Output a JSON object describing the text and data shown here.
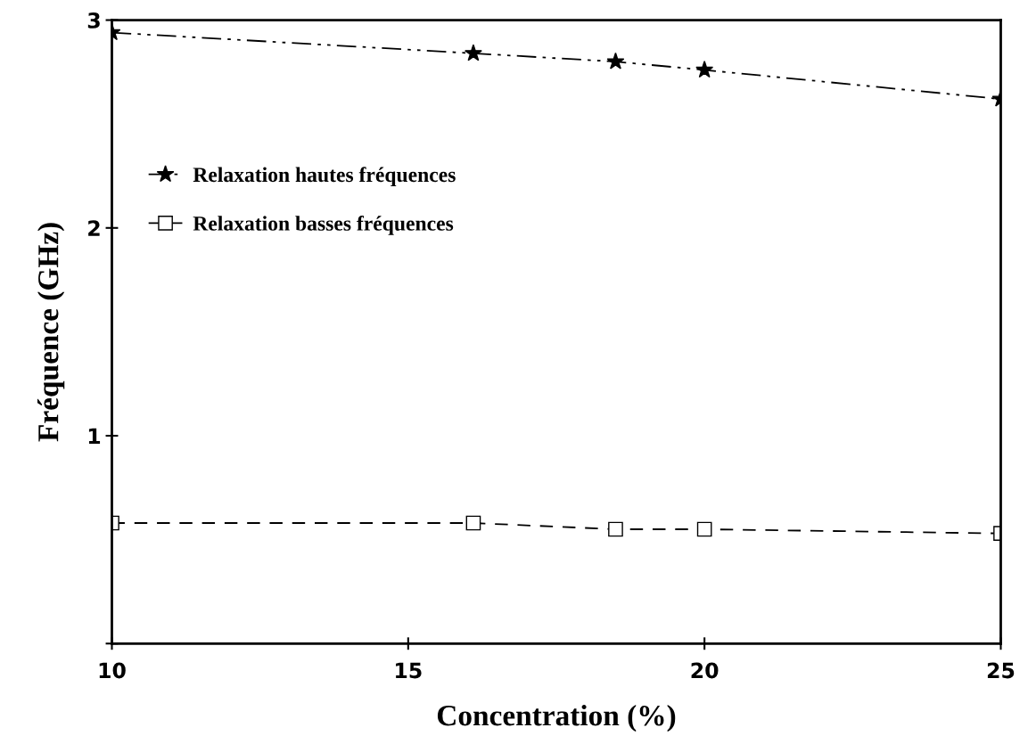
{
  "chart_data": {
    "type": "line",
    "xlabel": "Concentration (%)",
    "ylabel": "Fréquence (GHz)",
    "x": [
      10,
      16.1,
      18.5,
      20,
      25
    ],
    "series": [
      {
        "name": "Relaxation hautes fréquences",
        "color": "#000000",
        "marker": "star",
        "line_style": "dashdotdot",
        "values": [
          2.94,
          2.84,
          2.8,
          2.76,
          2.62
        ]
      },
      {
        "name": "Relaxation basses fréquences",
        "color": "#000000",
        "marker": "square",
        "line_style": "dashed",
        "values": [
          0.58,
          0.58,
          0.55,
          0.55,
          0.53
        ]
      }
    ],
    "xlim": [
      10,
      25
    ],
    "xticks": [
      10,
      15,
      20,
      25
    ],
    "ylim": [
      0,
      3
    ],
    "yticks": [
      {
        "value": 0,
        "label": null
      },
      1,
      2,
      3
    ],
    "grid": false,
    "legend": "left"
  }
}
